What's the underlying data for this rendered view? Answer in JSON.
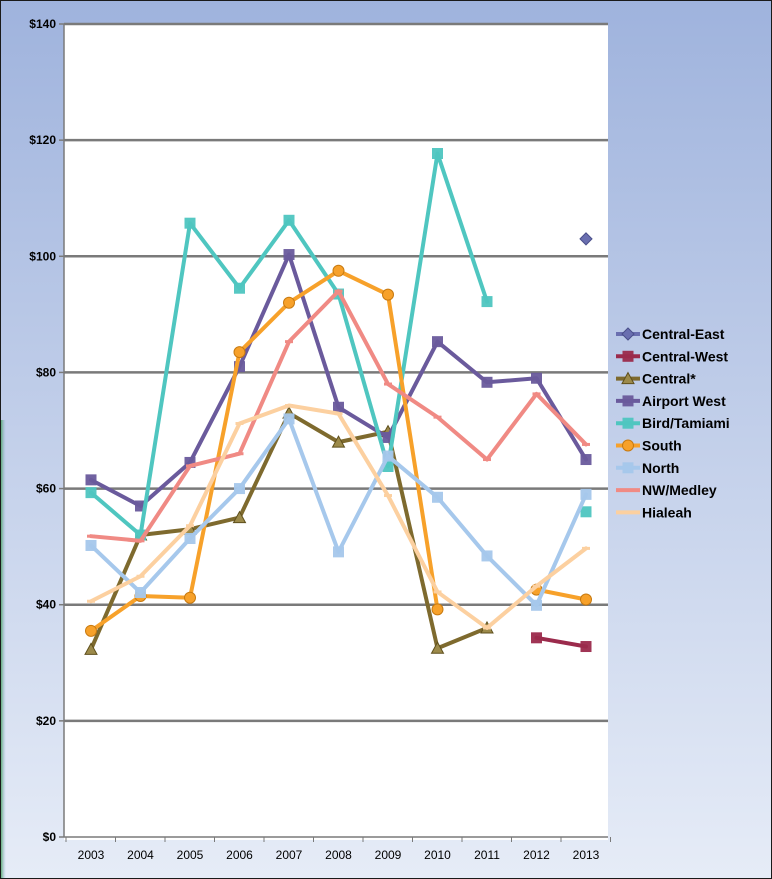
{
  "chart_data": {
    "type": "line",
    "title": "",
    "xlabel": "",
    "ylabel": "",
    "x": [
      "2003",
      "2004",
      "2005",
      "2006",
      "2007",
      "2008",
      "2009",
      "2010",
      "2011",
      "2012",
      "2013"
    ],
    "ylim": [
      0,
      140
    ],
    "y_ticks": [
      0,
      20,
      40,
      60,
      80,
      100,
      120,
      140
    ],
    "y_tick_labels": [
      "$0",
      "$20",
      "$40",
      "$60",
      "$80",
      "$100",
      "$120",
      "$140"
    ],
    "grid": "horizontal",
    "legend_position": "right",
    "series": [
      {
        "name": "Central-East",
        "color": "#6a6fb0",
        "marker": "diamond",
        "values": [
          null,
          null,
          null,
          null,
          null,
          null,
          null,
          null,
          null,
          null,
          103
        ]
      },
      {
        "name": "Central-West",
        "color": "#9b2b4c",
        "marker": "square",
        "values": [
          null,
          null,
          null,
          null,
          null,
          null,
          null,
          null,
          null,
          34.3,
          32.8
        ]
      },
      {
        "name": "Central*",
        "color": "#7e6a2e",
        "marker": "triangle",
        "values": [
          32.3,
          52,
          53,
          55,
          73,
          68,
          69.8,
          32.5,
          36,
          null,
          null
        ]
      },
      {
        "name": "Airport West",
        "color": "#6a5a9c",
        "marker": "square",
        "values": [
          61.5,
          57,
          64.5,
          81,
          100.3,
          74,
          68.8,
          85.3,
          78.3,
          79,
          65
        ]
      },
      {
        "name": "Bird/Tamiami",
        "color": "#4fc6c0",
        "marker": "square",
        "values": [
          59.3,
          52,
          105.7,
          94.5,
          106.2,
          93.5,
          63.8,
          117.7,
          92.2,
          null,
          56
        ]
      },
      {
        "name": "South",
        "color": "#f7a12a",
        "marker": "circle",
        "values": [
          35.5,
          41.5,
          41.2,
          83.5,
          92,
          97.5,
          93.4,
          39.2,
          null,
          42.6,
          40.9
        ]
      },
      {
        "name": "North",
        "color": "#a6c8ec",
        "marker": "square",
        "values": [
          50.2,
          42.1,
          51.4,
          60,
          72,
          49.1,
          65.6,
          58.5,
          48.4,
          39.9,
          59
        ]
      },
      {
        "name": "NW/Medley",
        "color": "#f08a84",
        "marker": "dash",
        "values": [
          51.8,
          51,
          63.9,
          66,
          85.3,
          94,
          78,
          72.3,
          65,
          76.3,
          67.6
        ]
      },
      {
        "name": "Hialeah",
        "color": "#fcd0a0",
        "marker": "dash",
        "values": [
          40.6,
          44.9,
          53.6,
          71.2,
          74.3,
          72.9,
          58.8,
          42.2,
          36,
          43.2,
          49.7
        ]
      }
    ]
  }
}
